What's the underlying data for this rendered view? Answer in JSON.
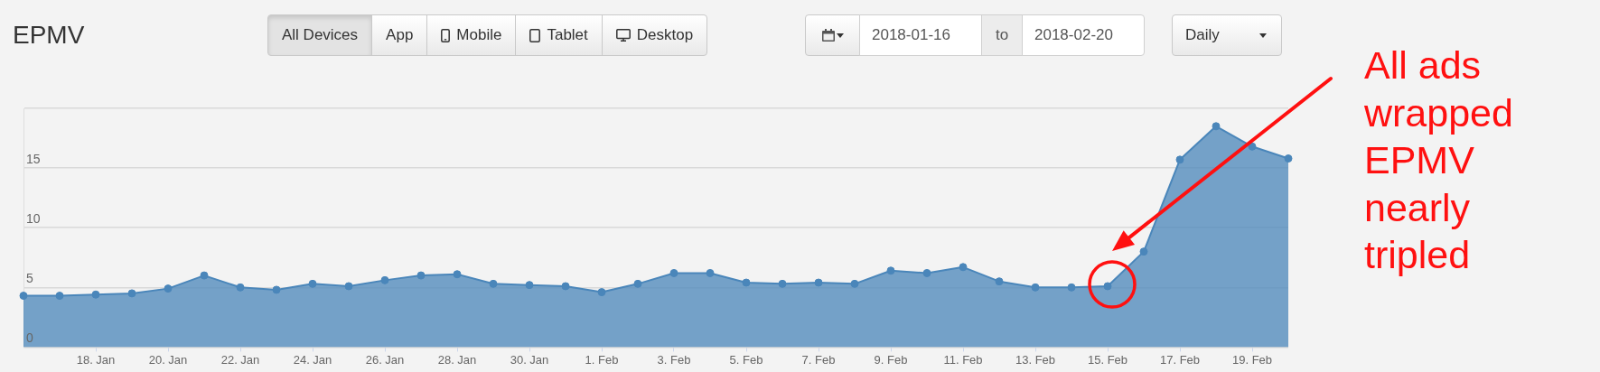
{
  "chart_data": {
    "type": "area",
    "title": "EPMV",
    "x": [
      "2018-01-16",
      "2018-01-17",
      "2018-01-18",
      "2018-01-19",
      "2018-01-20",
      "2018-01-21",
      "2018-01-22",
      "2018-01-23",
      "2018-01-24",
      "2018-01-25",
      "2018-01-26",
      "2018-01-27",
      "2018-01-28",
      "2018-01-29",
      "2018-01-30",
      "2018-01-31",
      "2018-02-01",
      "2018-02-02",
      "2018-02-03",
      "2018-02-04",
      "2018-02-05",
      "2018-02-06",
      "2018-02-07",
      "2018-02-08",
      "2018-02-09",
      "2018-02-10",
      "2018-02-11",
      "2018-02-12",
      "2018-02-13",
      "2018-02-14",
      "2018-02-15",
      "2018-02-16",
      "2018-02-17",
      "2018-02-18",
      "2018-02-19",
      "2018-02-20"
    ],
    "values": [
      4.3,
      4.3,
      4.4,
      4.5,
      4.9,
      6.0,
      5.0,
      4.8,
      5.3,
      5.1,
      5.6,
      6.0,
      6.1,
      5.3,
      5.2,
      5.1,
      4.6,
      5.3,
      6.2,
      6.2,
      5.4,
      5.3,
      5.4,
      5.3,
      6.4,
      6.2,
      6.7,
      5.5,
      5.0,
      5.0,
      5.1,
      8.0,
      15.7,
      18.5,
      16.8,
      15.8
    ],
    "color": "#4a86ba",
    "xlim": [
      "2018-01-16",
      "2018-02-20"
    ],
    "xticks": [
      {
        "value": "2018-01-18",
        "label": "18. Jan"
      },
      {
        "value": "2018-01-20",
        "label": "20. Jan"
      },
      {
        "value": "2018-01-22",
        "label": "22. Jan"
      },
      {
        "value": "2018-01-24",
        "label": "24. Jan"
      },
      {
        "value": "2018-01-26",
        "label": "26. Jan"
      },
      {
        "value": "2018-01-28",
        "label": "28. Jan"
      },
      {
        "value": "2018-01-30",
        "label": "30. Jan"
      },
      {
        "value": "2018-02-01",
        "label": "1. Feb"
      },
      {
        "value": "2018-02-03",
        "label": "3. Feb"
      },
      {
        "value": "2018-02-05",
        "label": "5. Feb"
      },
      {
        "value": "2018-02-07",
        "label": "7. Feb"
      },
      {
        "value": "2018-02-09",
        "label": "9. Feb"
      },
      {
        "value": "2018-02-11",
        "label": "11. Feb"
      },
      {
        "value": "2018-02-13",
        "label": "13. Feb"
      },
      {
        "value": "2018-02-15",
        "label": "15. Feb"
      },
      {
        "value": "2018-02-17",
        "label": "17. Feb"
      },
      {
        "value": "2018-02-19",
        "label": "19. Feb"
      }
    ],
    "ylim": [
      0,
      20
    ],
    "yticks": [
      0,
      5,
      10,
      15,
      {
        "value": 20,
        "label": null
      }
    ],
    "grid": "y",
    "marker": "circle",
    "annotations": [
      "All Devices",
      "App",
      "Mobile",
      "Tablet",
      "Desktop",
      "2018-01-16",
      "to",
      "2018-02-20",
      "Daily",
      "All ads wrapped EPMV nearly tripled"
    ]
  }
}
